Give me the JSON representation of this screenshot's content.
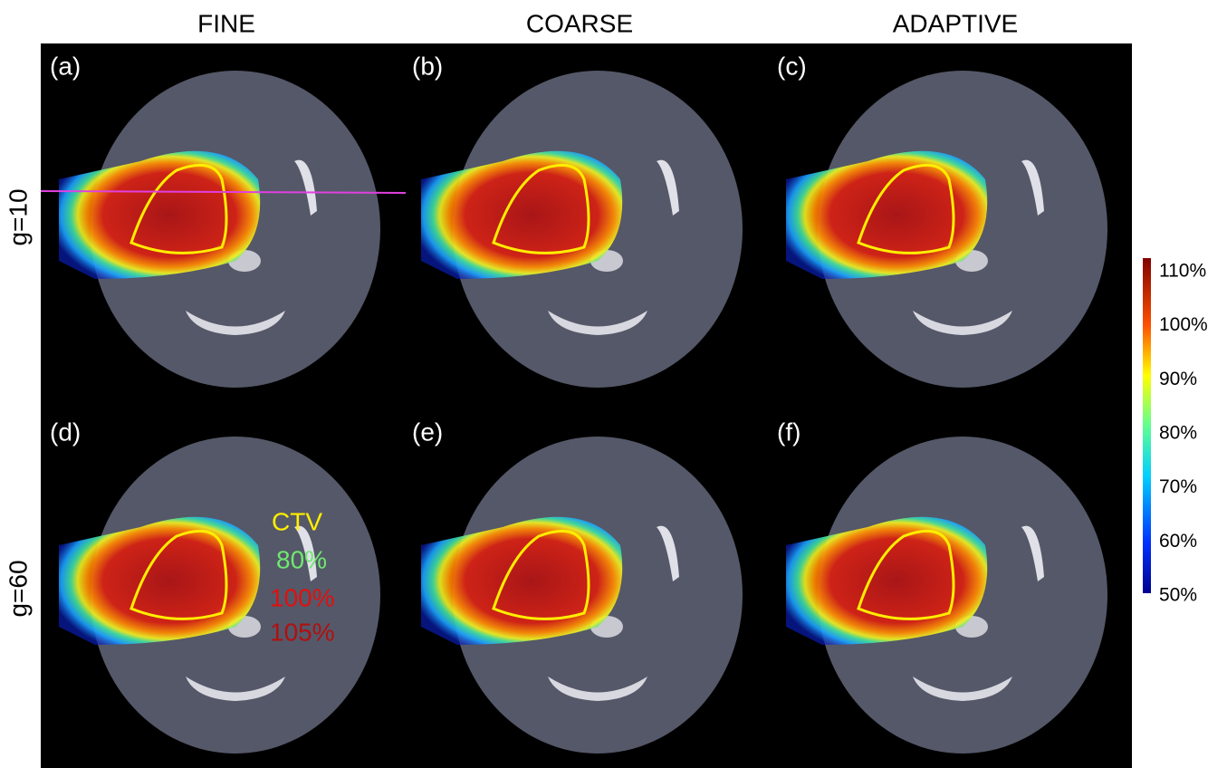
{
  "columns": [
    "FINE",
    "COARSE",
    "ADAPTIVE"
  ],
  "rows": [
    "g=10",
    "g=60"
  ],
  "panels": [
    "(a)",
    "(b)",
    "(c)",
    "(d)",
    "(e)",
    "(f)"
  ],
  "legend": {
    "contour": "CTV",
    "isodoses": [
      "80%",
      "100%",
      "105%"
    ]
  },
  "colorbar": {
    "ticks": [
      "110%",
      "100%",
      "90%",
      "80%",
      "70%",
      "60%",
      "50%"
    ]
  }
}
